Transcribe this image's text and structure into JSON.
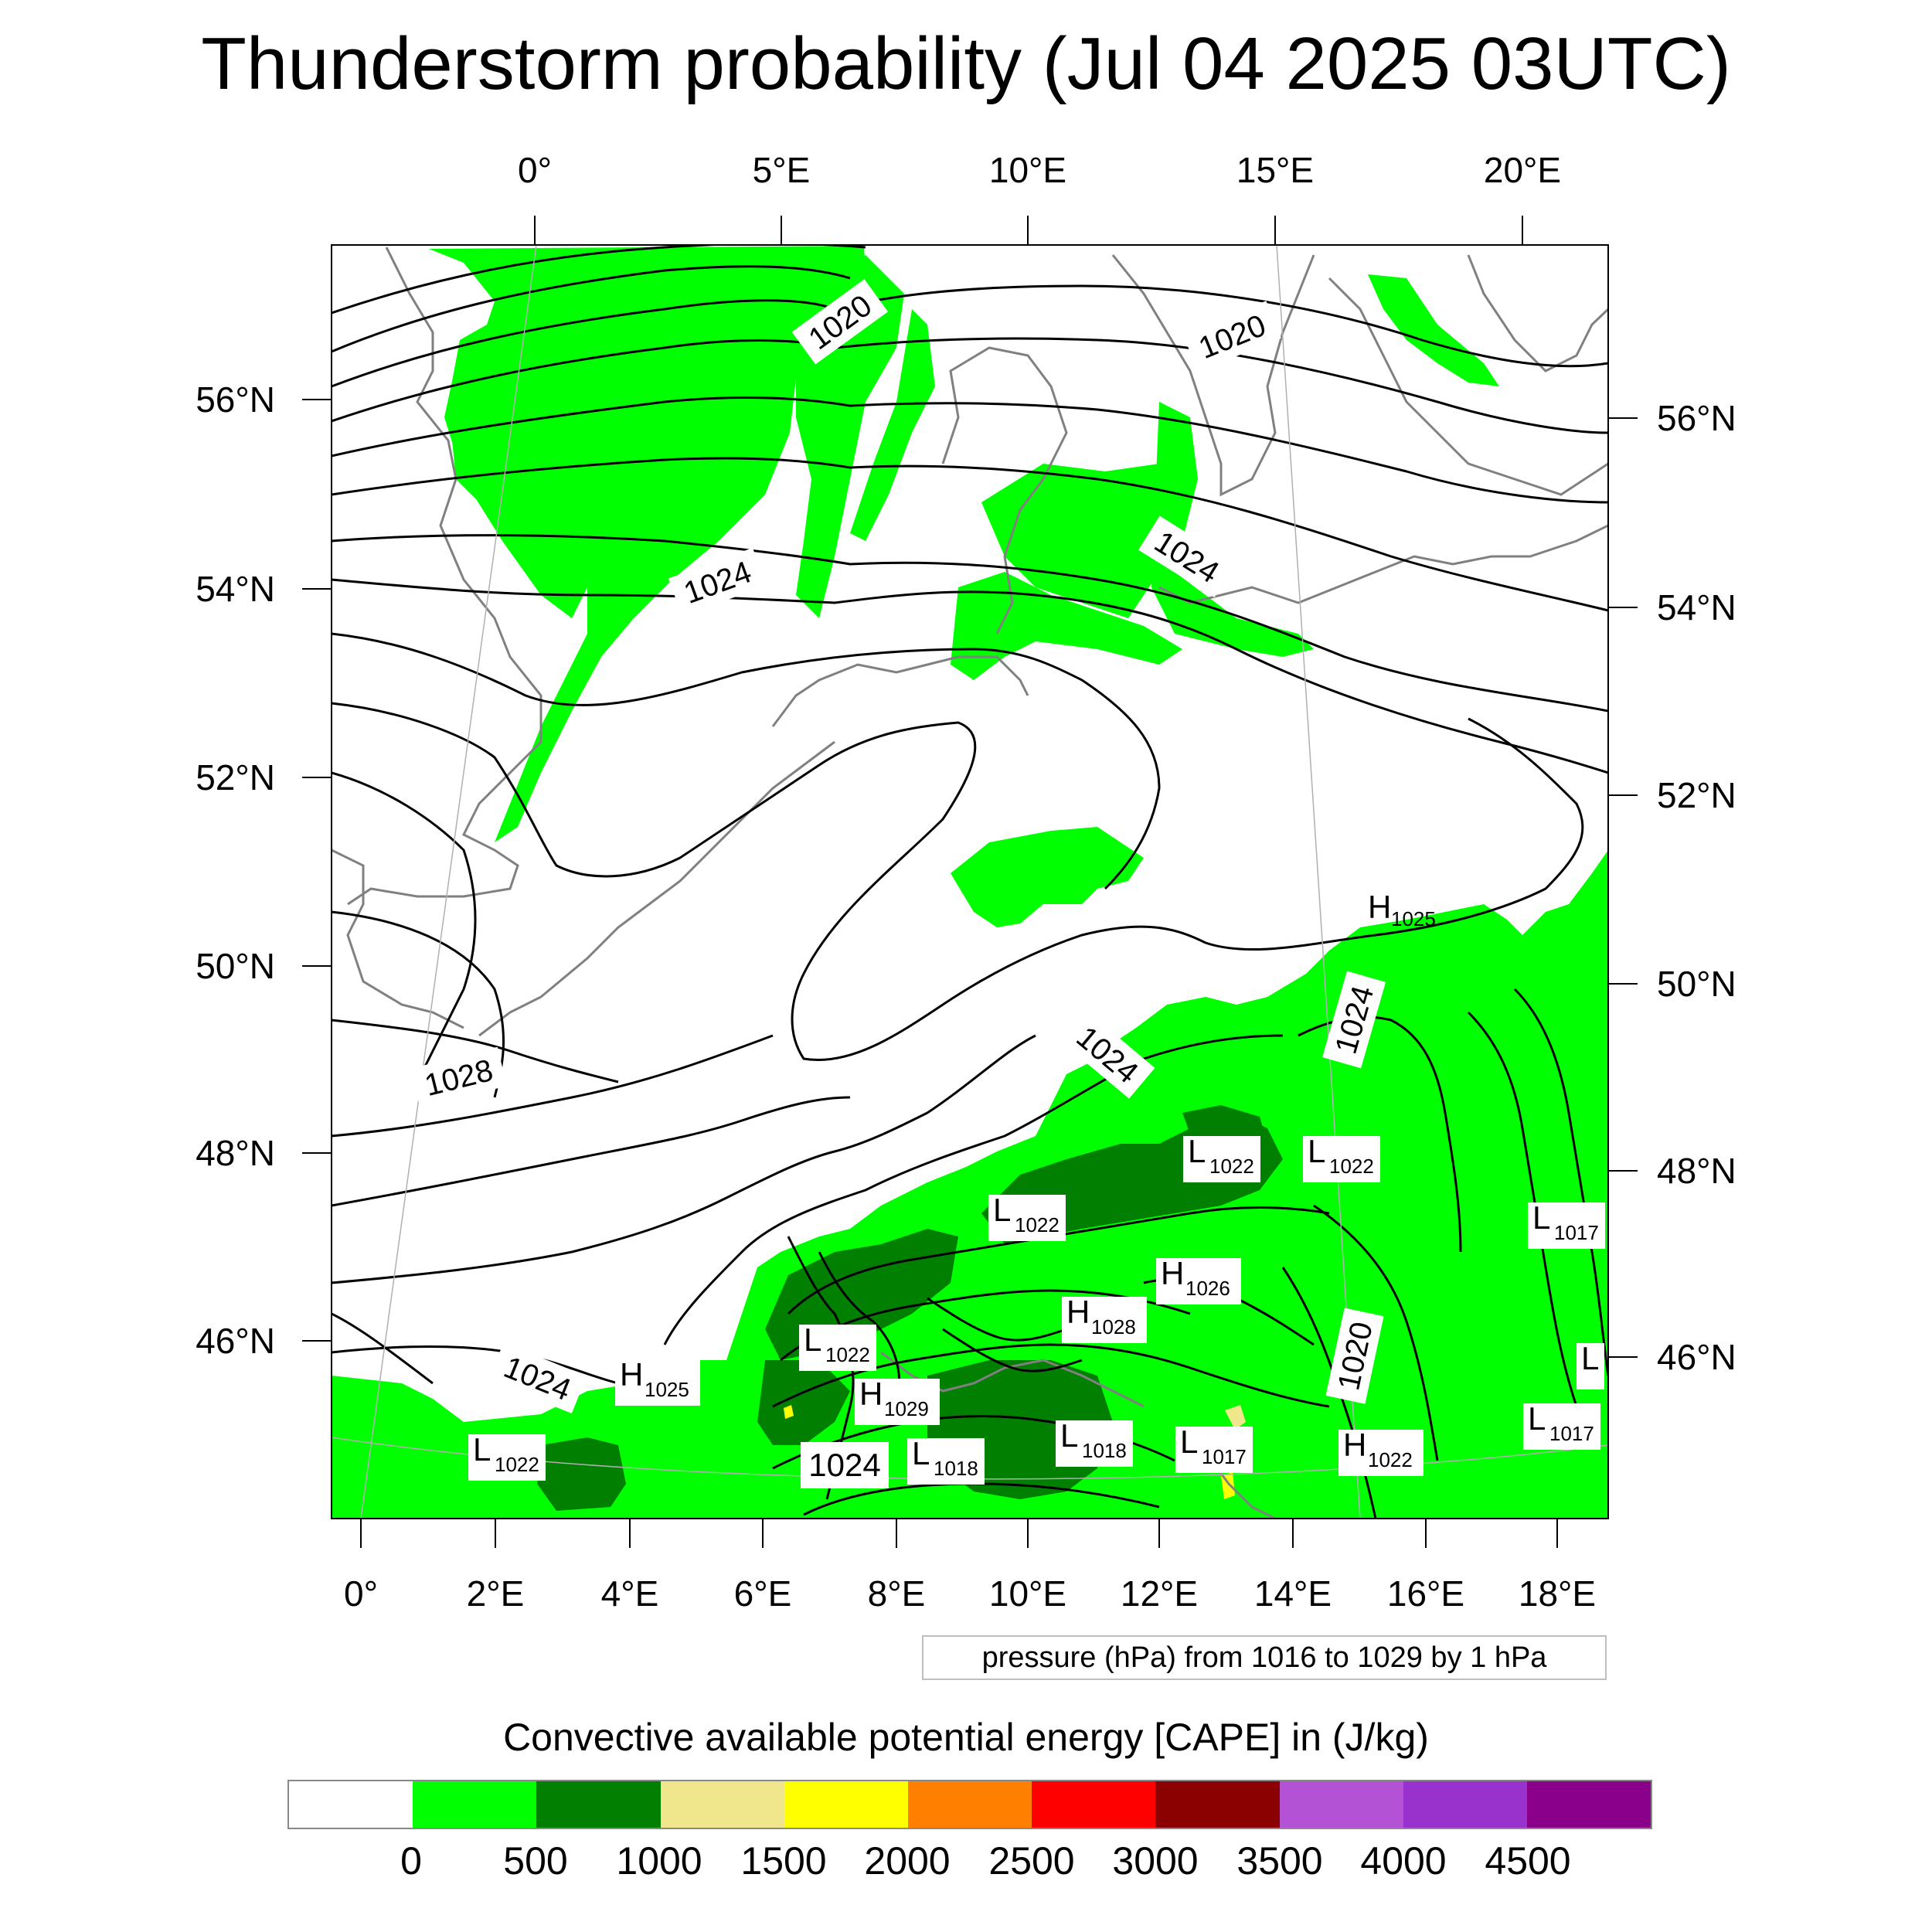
{
  "title": "Thunderstorm probability (Jul 04 2025 03UTC)",
  "map": {
    "top_lon_labels": [
      "0°",
      "5°E",
      "10°E",
      "15°E",
      "20°E"
    ],
    "bottom_lon_labels": [
      "0°",
      "2°E",
      "4°E",
      "6°E",
      "8°E",
      "10°E",
      "12°E",
      "14°E",
      "16°E",
      "18°E"
    ],
    "left_lat_labels": [
      "56°N",
      "54°N",
      "52°N",
      "50°N",
      "48°N",
      "46°N"
    ],
    "right_lat_labels": [
      "56°N",
      "54°N",
      "52°N",
      "50°N",
      "48°N",
      "46°N"
    ],
    "isobar_labels": [
      "1020",
      "1020",
      "1024",
      "1024",
      "1028",
      "1024",
      "1024",
      "1024",
      "1024",
      "1020"
    ],
    "centers": [
      {
        "letter": "H",
        "value": "1025"
      },
      {
        "letter": "L",
        "value": "1022"
      },
      {
        "letter": "L",
        "value": "1022"
      },
      {
        "letter": "L",
        "value": "1022"
      },
      {
        "letter": "L",
        "value": "1017"
      },
      {
        "letter": "H",
        "value": "1026"
      },
      {
        "letter": "H",
        "value": "1028"
      },
      {
        "letter": "L",
        "value": "1022"
      },
      {
        "letter": "H",
        "value": "1025"
      },
      {
        "letter": "H",
        "value": "1029"
      },
      {
        "letter": "L",
        "value": "1022"
      },
      {
        "letter": "L",
        "value": "1018"
      },
      {
        "letter": "L",
        "value": "1018"
      },
      {
        "letter": "L",
        "value": "1017"
      },
      {
        "letter": "H",
        "value": "1022"
      },
      {
        "letter": "L",
        "value": "1017"
      },
      {
        "letter": "L",
        "value": ""
      }
    ],
    "big_label": "1024",
    "colors": {
      "cape_0_500": "#00ff00",
      "cape_500_1000": "#007f00",
      "cape_1000_1500": "#f0e68c",
      "cape_1500_2000": "#ffff00",
      "coastline": "#808080",
      "isobar": "#000000"
    }
  },
  "legend": {
    "pressure_note": "pressure (hPa) from 1016 to 1029 by 1 hPa",
    "colorbar_title": "Convective available potential energy [CAPE] in (J/kg)",
    "colorbar_colors": [
      "#ffffff",
      "#00ff00",
      "#007f00",
      "#f0e68c",
      "#ffff00",
      "#ff8000",
      "#ff0000",
      "#8b0000",
      "#b452d6",
      "#9932cc",
      "#8b008b"
    ],
    "colorbar_labels": [
      "0",
      "500",
      "1000",
      "1500",
      "2000",
      "2500",
      "3000",
      "3500",
      "4000",
      "4500"
    ]
  }
}
